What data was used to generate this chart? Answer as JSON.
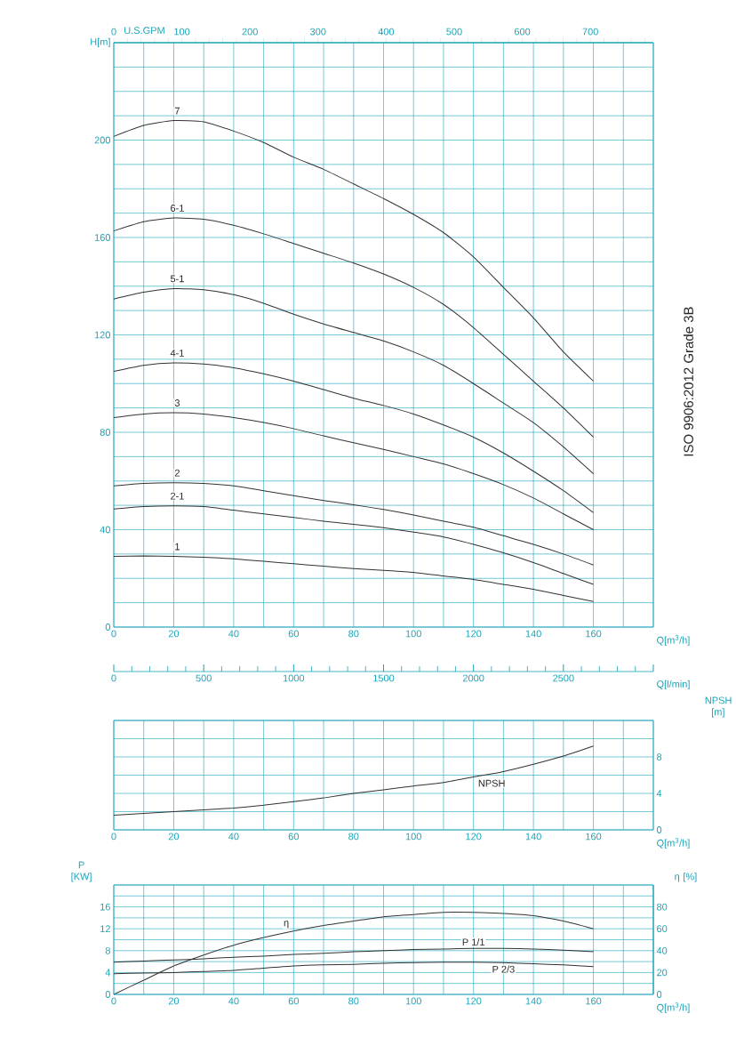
{
  "chart_data": [
    {
      "type": "line",
      "ylabel": "H[m]",
      "xlabel": "Q[m$^{3}$/h]",
      "x2label": "U.S.GPM",
      "grid": true,
      "annotations": [
        "ISO 9906:2012 Grade 3B"
      ],
      "x": [
        0,
        10,
        20,
        30,
        40,
        50,
        60,
        70,
        80,
        90,
        100,
        110,
        120,
        130,
        140,
        150,
        160
      ],
      "xlim": [
        0,
        180
      ],
      "xticks": [
        0,
        {
          "value": 10,
          "label": null
        },
        20,
        {
          "value": 30,
          "label": null
        },
        40,
        {
          "value": 50,
          "label": null
        },
        60,
        {
          "value": 70,
          "label": null
        },
        80,
        {
          "value": 90,
          "label": null
        },
        100,
        {
          "value": 110,
          "label": null
        },
        120,
        {
          "value": 130,
          "label": null
        },
        140,
        {
          "value": 150,
          "label": null
        },
        160,
        {
          "value": 170,
          "label": null
        },
        {
          "value": 180,
          "label": null
        }
      ],
      "ylim": [
        0,
        240
      ],
      "yticks": [
        0,
        {
          "value": 10,
          "label": null
        },
        {
          "value": 20,
          "label": null
        },
        {
          "value": 30,
          "label": null
        },
        40,
        {
          "value": 50,
          "label": null
        },
        {
          "value": 60,
          "label": null
        },
        {
          "value": 70,
          "label": null
        },
        80,
        {
          "value": 90,
          "label": null
        },
        {
          "value": 100,
          "label": null
        },
        {
          "value": 110,
          "label": null
        },
        120,
        {
          "value": 130,
          "label": null
        },
        {
          "value": 140,
          "label": null
        },
        {
          "value": 150,
          "label": null
        },
        160,
        {
          "value": 170,
          "label": null
        },
        {
          "value": 180,
          "label": null
        },
        {
          "value": 190,
          "label": null
        },
        200,
        {
          "value": 210,
          "label": null
        },
        {
          "value": 220,
          "label": null
        },
        {
          "value": 230,
          "label": null
        },
        {
          "value": 240,
          "label": null
        }
      ],
      "x2lim": [
        0,
        792.5
      ],
      "x2ticks": [
        0,
        {
          "value": 20,
          "label": null
        },
        {
          "value": 40,
          "label": null
        },
        {
          "value": 60,
          "label": null
        },
        {
          "value": 80,
          "label": null
        },
        100,
        {
          "value": 120,
          "label": null
        },
        {
          "value": 140,
          "label": null
        },
        {
          "value": 160,
          "label": null
        },
        {
          "value": 180,
          "label": null
        },
        200,
        {
          "value": 220,
          "label": null
        },
        {
          "value": 240,
          "label": null
        },
        {
          "value": 260,
          "label": null
        },
        {
          "value": 280,
          "label": null
        },
        300,
        {
          "value": 320,
          "label": null
        },
        {
          "value": 340,
          "label": null
        },
        {
          "value": 360,
          "label": null
        },
        {
          "value": 380,
          "label": null
        },
        400,
        {
          "value": 420,
          "label": null
        },
        {
          "value": 440,
          "label": null
        },
        {
          "value": 460,
          "label": null
        },
        {
          "value": 480,
          "label": null
        },
        500,
        {
          "value": 520,
          "label": null
        },
        {
          "value": 540,
          "label": null
        },
        {
          "value": 560,
          "label": null
        },
        {
          "value": 580,
          "label": null
        },
        600,
        {
          "value": 620,
          "label": null
        },
        {
          "value": 640,
          "label": null
        },
        {
          "value": 660,
          "label": null
        },
        {
          "value": 680,
          "label": null
        },
        700,
        {
          "value": 720,
          "label": null
        },
        {
          "value": 740,
          "label": null
        },
        {
          "value": 760,
          "label": null
        },
        {
          "value": 780,
          "label": null
        }
      ],
      "series": [
        {
          "name": "1",
          "color": "#333333",
          "values": [
            29,
            29.2,
            29,
            28.7,
            28,
            27,
            26,
            25,
            24,
            23.3,
            22.5,
            21,
            19.5,
            17.5,
            15.5,
            13,
            10.5
          ]
        },
        {
          "name": "2-1",
          "color": "#333333",
          "values": [
            48.5,
            49.5,
            49.8,
            49.5,
            48,
            46.5,
            45,
            43.5,
            42.2,
            40.8,
            39,
            37,
            34,
            30.5,
            26.5,
            22,
            17.5
          ]
        },
        {
          "name": "2",
          "color": "#333333",
          "values": [
            58,
            59,
            59.3,
            59,
            58,
            56,
            54,
            52,
            50.2,
            48.3,
            46,
            43.5,
            41,
            37.5,
            34,
            30,
            25.5
          ]
        },
        {
          "name": "3",
          "color": "#333333",
          "values": [
            86,
            87.5,
            88,
            87.5,
            86,
            84,
            81.5,
            78.5,
            75.7,
            73,
            70,
            67,
            63,
            58.5,
            53,
            46.5,
            40
          ]
        },
        {
          "name": "4-1",
          "color": "#333333",
          "values": [
            105,
            107.5,
            108.5,
            108,
            106.5,
            104,
            101,
            97.5,
            94,
            91,
            87.5,
            83,
            78,
            71.5,
            64,
            56,
            47
          ]
        },
        {
          "name": "5-1",
          "color": "#333333",
          "values": [
            134.7,
            137.5,
            139,
            138.5,
            136.5,
            133,
            128.5,
            124.5,
            121,
            117.5,
            113,
            107.5,
            100,
            92,
            84,
            74,
            63
          ]
        },
        {
          "name": "6-1",
          "color": "#333333",
          "values": [
            162.7,
            166.5,
            168,
            167.5,
            165,
            161.5,
            157.5,
            153.5,
            149.5,
            145,
            139.5,
            132.5,
            123,
            112,
            101,
            90,
            78
          ]
        },
        {
          "name": "7",
          "color": "#333333",
          "values": [
            201.5,
            206,
            208,
            207.5,
            203.7,
            199,
            193,
            188,
            182,
            176,
            169.5,
            162,
            152,
            139.5,
            127,
            113,
            101
          ]
        }
      ]
    },
    {
      "type": "line",
      "ylabel": "NPSH [m]",
      "xlabel": "Q[m$^{3}$/h]",
      "x2label": "Q[l/min]",
      "grid": true,
      "x2lim": [
        0,
        3000
      ],
      "x2ticks": [
        0,
        500,
        1000,
        1500,
        2000,
        2500,
        {
          "value": 3000,
          "label": null
        }
      ],
      "x": [
        0,
        10,
        20,
        30,
        40,
        50,
        60,
        70,
        80,
        90,
        100,
        110,
        120,
        130,
        140,
        150,
        160
      ],
      "xlim": [
        0,
        180
      ],
      "xticks": [
        0,
        {
          "value": 10,
          "label": null
        },
        20,
        {
          "value": 30,
          "label": null
        },
        40,
        {
          "value": 50,
          "label": null
        },
        60,
        {
          "value": 70,
          "label": null
        },
        80,
        {
          "value": 90,
          "label": null
        },
        100,
        {
          "value": 110,
          "label": null
        },
        120,
        {
          "value": 130,
          "label": null
        },
        140,
        {
          "value": 150,
          "label": null
        },
        160,
        {
          "value": 170,
          "label": null
        },
        {
          "value": 180,
          "label": null
        }
      ],
      "ylim": [
        0,
        12
      ],
      "yticks": [
        0,
        {
          "value": 2,
          "label": null
        },
        4,
        {
          "value": 6,
          "label": null
        },
        8,
        {
          "value": 10,
          "label": null
        },
        {
          "value": 12,
          "label": null
        }
      ],
      "series": [
        {
          "name": "NPSH",
          "color": "#333333",
          "values": [
            1.6,
            1.8,
            2,
            2.2,
            2.4,
            2.7,
            3.1,
            3.5,
            4,
            4.4,
            4.8,
            5.2,
            5.8,
            6.4,
            7.2,
            8.1,
            9.2
          ]
        }
      ]
    },
    {
      "type": "line",
      "ylabel": "P [KW]",
      "y2label": "η [%]",
      "xlabel": "Q[m$^{3}$/h]",
      "grid": true,
      "x": [
        0,
        10,
        20,
        30,
        40,
        50,
        60,
        70,
        80,
        90,
        100,
        110,
        120,
        130,
        140,
        150,
        160
      ],
      "xlim": [
        0,
        180
      ],
      "xticks": [
        0,
        {
          "value": 10,
          "label": null
        },
        20,
        {
          "value": 30,
          "label": null
        },
        40,
        {
          "value": 50,
          "label": null
        },
        60,
        {
          "value": 70,
          "label": null
        },
        80,
        {
          "value": 90,
          "label": null
        },
        100,
        {
          "value": 110,
          "label": null
        },
        120,
        {
          "value": 130,
          "label": null
        },
        140,
        {
          "value": 150,
          "label": null
        },
        160,
        {
          "value": 170,
          "label": null
        },
        {
          "value": 180,
          "label": null
        }
      ],
      "ylim": [
        0,
        20
      ],
      "yticks": [
        0,
        4,
        8,
        12,
        16
      ],
      "y2lim": [
        0,
        100
      ],
      "y2ticks": [
        0,
        {
          "value": 10,
          "label": null
        },
        20,
        {
          "value": 30,
          "label": null
        },
        40,
        {
          "value": 50,
          "label": null
        },
        60,
        {
          "value": 70,
          "label": null
        },
        80,
        {
          "value": 90,
          "label": null
        },
        {
          "value": 100,
          "label": null
        }
      ],
      "series": [
        {
          "name": "η",
          "color": "#333333",
          "axis": "y2",
          "values": [
            0,
            13,
            26,
            36,
            45,
            52,
            58,
            63,
            67,
            71,
            73,
            75,
            75,
            74,
            72,
            67,
            60
          ]
        },
        {
          "name": "P 1/1",
          "color": "#333333",
          "values": [
            5.9,
            6.1,
            6.3,
            6.5,
            6.8,
            7,
            7.3,
            7.5,
            7.8,
            8,
            8.2,
            8.3,
            8.4,
            8.4,
            8.3,
            8.1,
            7.8
          ]
        },
        {
          "name": "P 2/3",
          "color": "#333333",
          "values": [
            3.8,
            3.9,
            4,
            4.2,
            4.4,
            4.8,
            5.2,
            5.4,
            5.5,
            5.7,
            5.8,
            5.9,
            5.9,
            5.8,
            5.6,
            5.4,
            5.1
          ]
        }
      ]
    }
  ]
}
